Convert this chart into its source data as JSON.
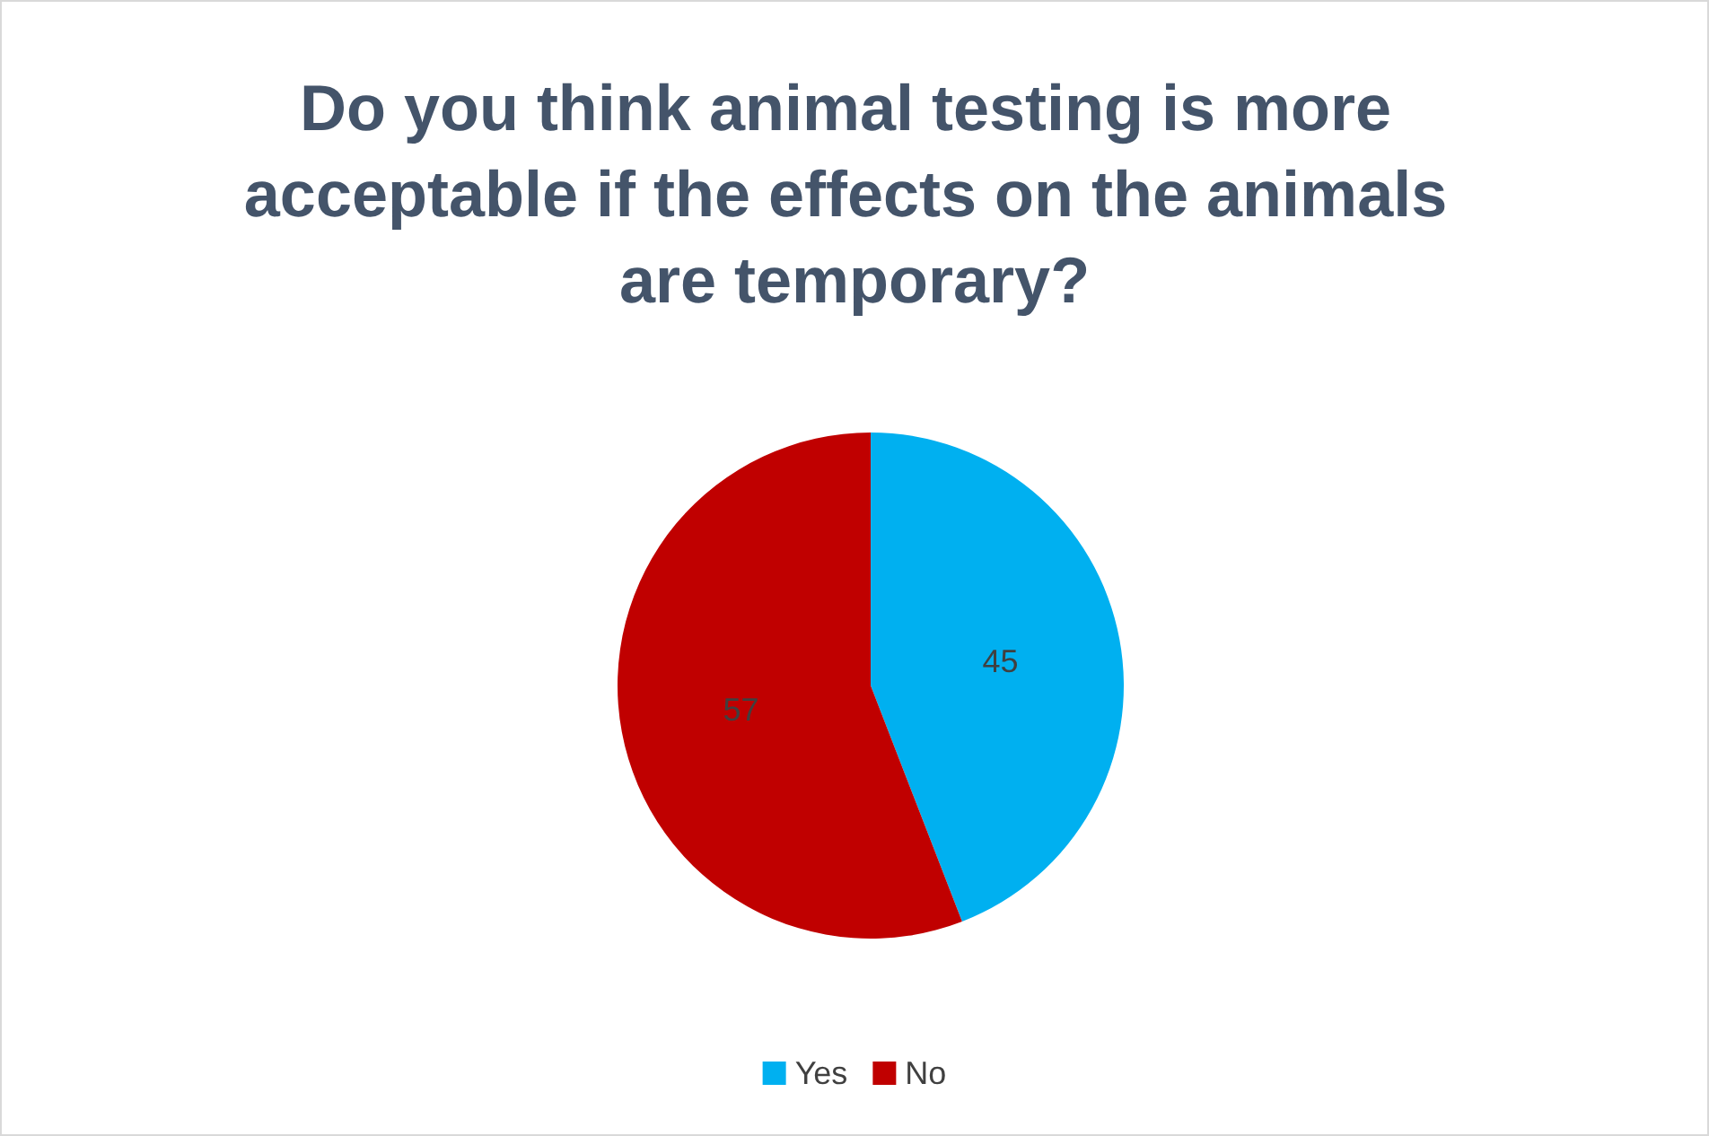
{
  "chart_data": {
    "type": "pie",
    "title": "Do you think animal testing is more acceptable if the effects on the animals are temporary?",
    "categories": [
      "Yes",
      "No"
    ],
    "values": [
      45,
      57
    ],
    "colors": [
      "#00b0f0",
      "#c00000"
    ],
    "data_labels": true,
    "legend": "bottom"
  }
}
